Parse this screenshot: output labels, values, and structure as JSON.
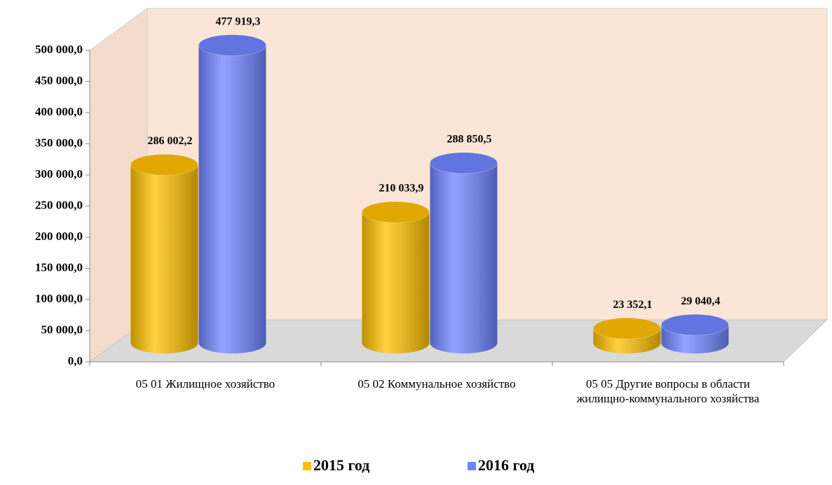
{
  "chart_data": {
    "type": "bar3d",
    "categories": [
      "05 01 Жилищное хозяйство",
      "05 02 Коммунальное хозяйство",
      "05 05 Другие вопросы в области жилищно-коммунального хозяйства"
    ],
    "series": [
      {
        "name": "2015 год",
        "color": "#ffc000",
        "values": [
          286002.2,
          210033.9,
          23352.1
        ],
        "value_labels": [
          "286 002,2",
          "210 033,9",
          "23 352,1"
        ]
      },
      {
        "name": "2016 год",
        "color": "#6f84ff",
        "values": [
          477919.3,
          288850.5,
          29040.4
        ],
        "value_labels": [
          "477 919,3",
          "288 850,5",
          "29 040,4"
        ]
      }
    ],
    "ylim": [
      0,
      500000
    ],
    "yticks": [
      {
        "value": 0,
        "label": "0,0"
      },
      {
        "value": 50000,
        "label": "50 000,0"
      },
      {
        "value": 100000,
        "label": "100 000,0"
      },
      {
        "value": 150000,
        "label": "150 000,0"
      },
      {
        "value": 200000,
        "label": "200 000,0"
      },
      {
        "value": 250000,
        "label": "250 000,0"
      },
      {
        "value": 300000,
        "label": "300 000,0"
      },
      {
        "value": 350000,
        "label": "350 000,0"
      },
      {
        "value": 400000,
        "label": "400 000,0"
      },
      {
        "value": 450000,
        "label": "450 000,0"
      },
      {
        "value": 500000,
        "label": "500 000,0"
      }
    ],
    "legend": "bottom"
  }
}
